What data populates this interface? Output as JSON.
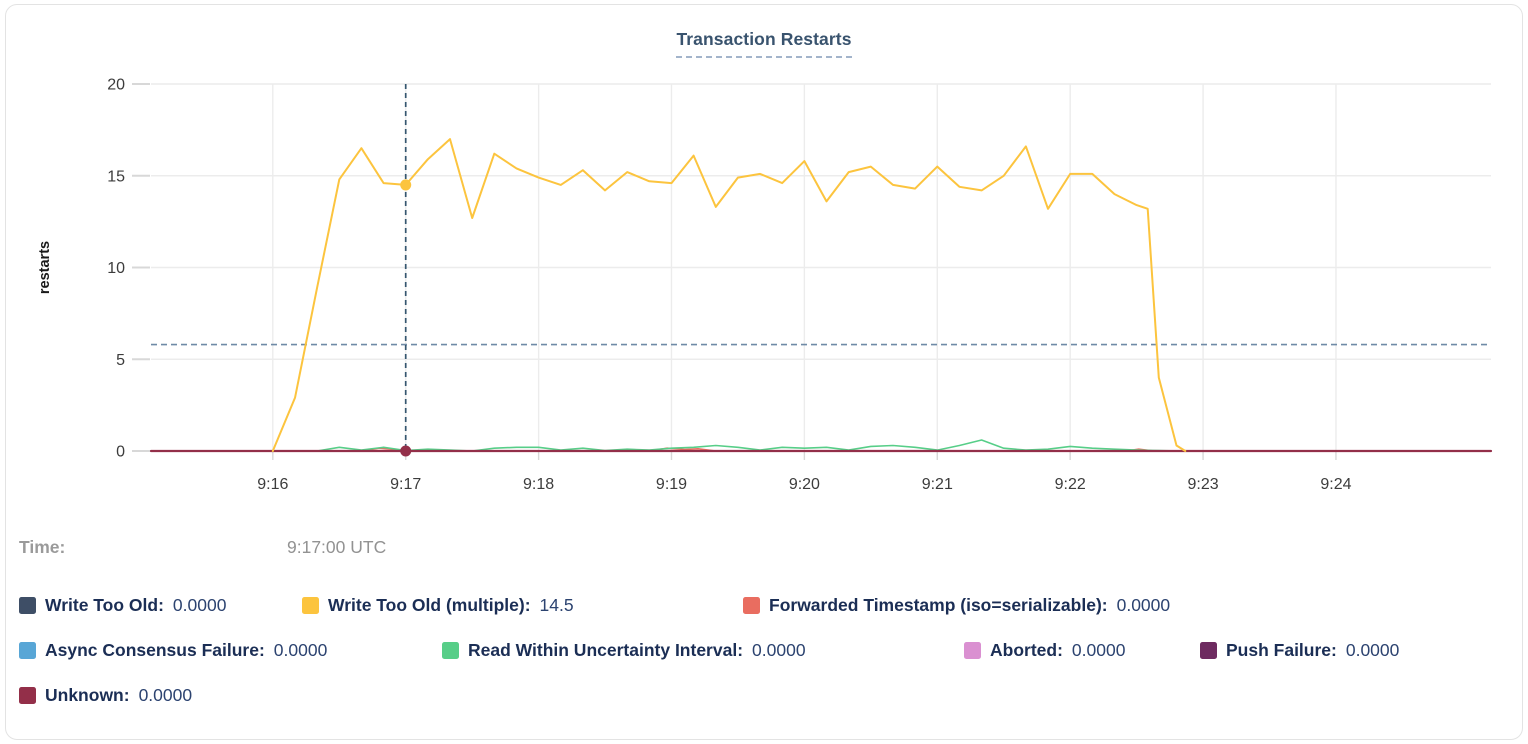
{
  "title": "Transaction Restarts",
  "tooltip": {
    "time_label": "Time:",
    "time_value": "9:17:00 UTC"
  },
  "chart_data": {
    "type": "line",
    "title": "Transaction Restarts",
    "ylabel": "restarts",
    "xlabel": "",
    "ylim": [
      0,
      20
    ],
    "y_ticks": [
      0,
      5,
      10,
      15,
      20
    ],
    "x_domain_seconds": [
      -55,
      550
    ],
    "x_ticks": [
      {
        "t": 0,
        "label": "9:16"
      },
      {
        "t": 60,
        "label": "9:17"
      },
      {
        "t": 120,
        "label": "9:18"
      },
      {
        "t": 180,
        "label": "9:19"
      },
      {
        "t": 240,
        "label": "9:20"
      },
      {
        "t": 300,
        "label": "9:21"
      },
      {
        "t": 360,
        "label": "9:22"
      },
      {
        "t": 420,
        "label": "9:23"
      },
      {
        "t": 480,
        "label": "9:24"
      }
    ],
    "grid": true,
    "legend_position": "bottom",
    "crosshair": {
      "time_seconds": 60,
      "time_label": "9:17:00 UTC",
      "threshold_line_value": 5.8
    },
    "highlight_points": [
      {
        "series": "Write Too Old (multiple)",
        "t": 60,
        "value": 14.5
      },
      {
        "series": "Unknown",
        "t": 60,
        "value": 0
      }
    ],
    "legend_rows": [
      [
        0,
        1,
        2
      ],
      [
        3,
        4,
        5,
        6
      ],
      [
        7
      ]
    ],
    "draw_order": [
      0,
      3,
      5,
      6,
      2,
      4,
      7,
      1
    ],
    "series": [
      {
        "name": "Write Too Old",
        "color": "#3e4e66",
        "legend_value": "0.0000",
        "width": 1.6,
        "points": [
          [
            0,
            0
          ],
          [
            412,
            0
          ]
        ]
      },
      {
        "name": "Write Too Old (multiple)",
        "color": "#fcc43e",
        "legend_value": "14.5",
        "width": 2,
        "points": [
          [
            0,
            0
          ],
          [
            10,
            2.9
          ],
          [
            20,
            8.9
          ],
          [
            30,
            14.8
          ],
          [
            40,
            16.5
          ],
          [
            50,
            14.6
          ],
          [
            60,
            14.5
          ],
          [
            70,
            15.9
          ],
          [
            80,
            17.0
          ],
          [
            90,
            12.7
          ],
          [
            100,
            16.2
          ],
          [
            110,
            15.4
          ],
          [
            120,
            14.9
          ],
          [
            130,
            14.5
          ],
          [
            140,
            15.3
          ],
          [
            150,
            14.2
          ],
          [
            160,
            15.2
          ],
          [
            170,
            14.7
          ],
          [
            180,
            14.6
          ],
          [
            190,
            16.1
          ],
          [
            200,
            13.3
          ],
          [
            210,
            14.9
          ],
          [
            220,
            15.1
          ],
          [
            230,
            14.6
          ],
          [
            240,
            15.8
          ],
          [
            250,
            13.6
          ],
          [
            260,
            15.2
          ],
          [
            270,
            15.5
          ],
          [
            280,
            14.5
          ],
          [
            290,
            14.3
          ],
          [
            300,
            15.5
          ],
          [
            310,
            14.4
          ],
          [
            320,
            14.2
          ],
          [
            330,
            15.0
          ],
          [
            340,
            16.6
          ],
          [
            350,
            13.2
          ],
          [
            360,
            15.1
          ],
          [
            370,
            15.1
          ],
          [
            380,
            14.0
          ],
          [
            390,
            13.4
          ],
          [
            395,
            13.2
          ],
          [
            400,
            4.0
          ],
          [
            408,
            0.3
          ],
          [
            412,
            0
          ]
        ]
      },
      {
        "name": "Forwarded Timestamp (iso=serializable)",
        "color": "#e96d60",
        "legend_value": "0.0000",
        "width": 1.6,
        "points": [
          [
            0,
            0
          ],
          [
            40,
            0
          ],
          [
            48,
            0.15
          ],
          [
            55,
            0.08
          ],
          [
            60,
            0
          ],
          [
            170,
            0
          ],
          [
            178,
            0.15
          ],
          [
            186,
            0.08
          ],
          [
            192,
            0.12
          ],
          [
            200,
            0
          ],
          [
            385,
            0
          ],
          [
            391,
            0.1
          ],
          [
            398,
            0
          ],
          [
            412,
            0
          ]
        ]
      },
      {
        "name": "Async Consensus Failure",
        "color": "#58a6d6",
        "legend_value": "0.0000",
        "width": 1.6,
        "points": [
          [
            0,
            0
          ],
          [
            412,
            0
          ]
        ]
      },
      {
        "name": "Read Within Uncertainty Interval",
        "color": "#57ce88",
        "legend_value": "0.0000",
        "width": 1.6,
        "points": [
          [
            20,
            0
          ],
          [
            30,
            0.2
          ],
          [
            40,
            0.05
          ],
          [
            50,
            0.2
          ],
          [
            60,
            0.02
          ],
          [
            70,
            0.1
          ],
          [
            80,
            0.05
          ],
          [
            90,
            0
          ],
          [
            100,
            0.15
          ],
          [
            110,
            0.2
          ],
          [
            120,
            0.2
          ],
          [
            130,
            0.05
          ],
          [
            140,
            0.15
          ],
          [
            150,
            0.02
          ],
          [
            160,
            0.1
          ],
          [
            170,
            0.05
          ],
          [
            180,
            0.15
          ],
          [
            190,
            0.2
          ],
          [
            200,
            0.3
          ],
          [
            210,
            0.2
          ],
          [
            220,
            0.05
          ],
          [
            230,
            0.2
          ],
          [
            240,
            0.15
          ],
          [
            250,
            0.2
          ],
          [
            260,
            0.05
          ],
          [
            270,
            0.25
          ],
          [
            280,
            0.3
          ],
          [
            290,
            0.2
          ],
          [
            300,
            0.05
          ],
          [
            310,
            0.3
          ],
          [
            320,
            0.6
          ],
          [
            330,
            0.15
          ],
          [
            340,
            0.05
          ],
          [
            350,
            0.1
          ],
          [
            360,
            0.25
          ],
          [
            370,
            0.15
          ],
          [
            380,
            0.1
          ],
          [
            390,
            0.05
          ],
          [
            400,
            0.02
          ],
          [
            410,
            0
          ]
        ]
      },
      {
        "name": "Aborted",
        "color": "#da90d1",
        "legend_value": "0.0000",
        "width": 1.6,
        "points": [
          [
            0,
            0
          ],
          [
            412,
            0
          ]
        ]
      },
      {
        "name": "Push Failure",
        "color": "#6e2b60",
        "legend_value": "0.0000",
        "width": 1.6,
        "points": [
          [
            0,
            0
          ],
          [
            412,
            0
          ]
        ]
      },
      {
        "name": "Unknown",
        "color": "#932f49",
        "legend_value": "0.0000",
        "width": 2.2,
        "points": [
          [
            -55,
            0
          ],
          [
            550,
            0
          ]
        ]
      }
    ],
    "colors": {
      "grid": "#ececec",
      "tick_stub": "#d8d8d8",
      "axis_text": "#3c3c3c",
      "crosshair_vertical": "#35566f",
      "threshold_dashed": "#6f8aa6"
    }
  }
}
